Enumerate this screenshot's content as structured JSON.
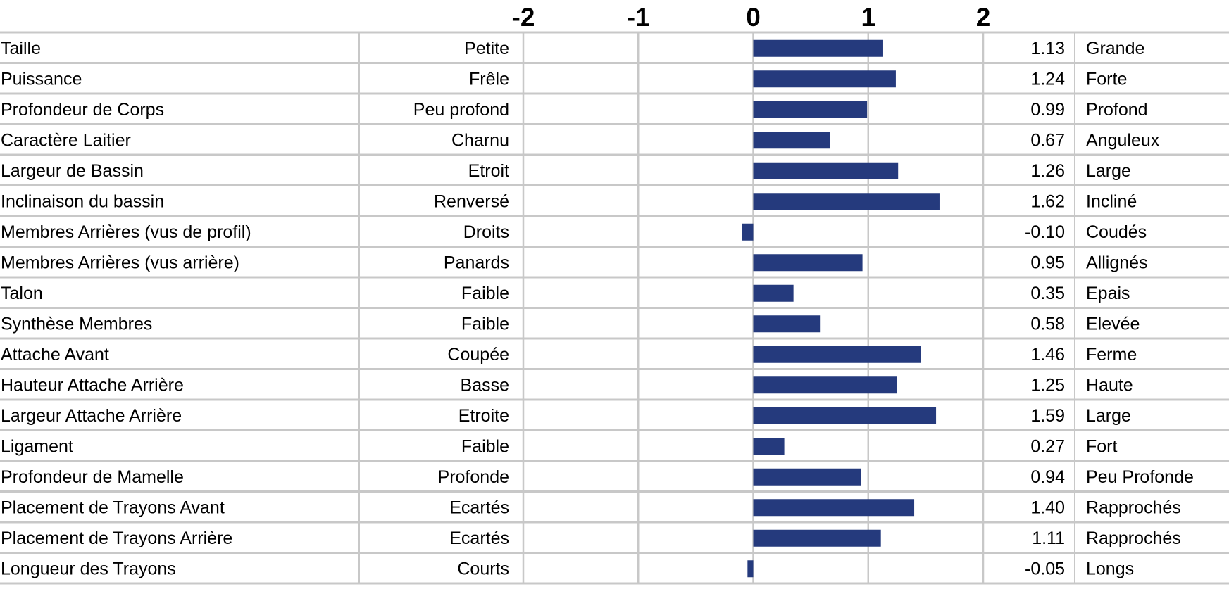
{
  "chart_data": {
    "type": "bar",
    "orientation": "horizontal",
    "title": "",
    "xlabel": "",
    "ylabel": "",
    "xlim": [
      -2,
      2
    ],
    "x_ticks": [
      "-2",
      "-1",
      "0",
      "1",
      "2"
    ],
    "grid": true,
    "legend": "none",
    "bar_color": "#253a7d",
    "rows": [
      {
        "trait": "Taille",
        "low": "Petite",
        "high": "Grande",
        "value": 1.13,
        "value_label": "1.13"
      },
      {
        "trait": "Puissance",
        "low": "Frêle",
        "high": "Forte",
        "value": 1.24,
        "value_label": "1.24"
      },
      {
        "trait": "Profondeur de Corps",
        "low": "Peu profond",
        "high": "Profond",
        "value": 0.99,
        "value_label": "0.99"
      },
      {
        "trait": "Caractère Laitier",
        "low": "Charnu",
        "high": "Anguleux",
        "value": 0.67,
        "value_label": "0.67"
      },
      {
        "trait": "Largeur de Bassin",
        "low": "Etroit",
        "high": "Large",
        "value": 1.26,
        "value_label": "1.26"
      },
      {
        "trait": "Inclinaison du bassin",
        "low": "Renversé",
        "high": "Incliné",
        "value": 1.62,
        "value_label": "1.62"
      },
      {
        "trait": "Membres Arrières (vus de profil)",
        "low": "Droits",
        "high": "Coudés",
        "value": -0.1,
        "value_label": "-0.10"
      },
      {
        "trait": "Membres Arrières (vus arrière)",
        "low": "Panards",
        "high": "Allignés",
        "value": 0.95,
        "value_label": "0.95"
      },
      {
        "trait": "Talon",
        "low": "Faible",
        "high": "Epais",
        "value": 0.35,
        "value_label": "0.35"
      },
      {
        "trait": "Synthèse Membres",
        "low": "Faible",
        "high": "Elevée",
        "value": 0.58,
        "value_label": "0.58"
      },
      {
        "trait": "Attache Avant",
        "low": "Coupée",
        "high": "Ferme",
        "value": 1.46,
        "value_label": "1.46"
      },
      {
        "trait": "Hauteur Attache Arrière",
        "low": "Basse",
        "high": "Haute",
        "value": 1.25,
        "value_label": "1.25"
      },
      {
        "trait": "Largeur Attache Arrière",
        "low": "Etroite",
        "high": "Large",
        "value": 1.59,
        "value_label": "1.59"
      },
      {
        "trait": "Ligament",
        "low": "Faible",
        "high": "Fort",
        "value": 0.27,
        "value_label": "0.27"
      },
      {
        "trait": "Profondeur de Mamelle",
        "low": "Profonde",
        "high": "Peu Profonde",
        "value": 0.94,
        "value_label": "0.94"
      },
      {
        "trait": "Placement de Trayons Avant",
        "low": "Ecartés",
        "high": "Rapprochés",
        "value": 1.4,
        "value_label": "1.40"
      },
      {
        "trait": "Placement de Trayons Arrière",
        "low": "Ecartés",
        "high": "Rapprochés",
        "value": 1.11,
        "value_label": "1.11"
      },
      {
        "trait": "Longueur des Trayons",
        "low": "Courts",
        "high": "Longs",
        "value": -0.05,
        "value_label": "-0.05"
      }
    ]
  }
}
